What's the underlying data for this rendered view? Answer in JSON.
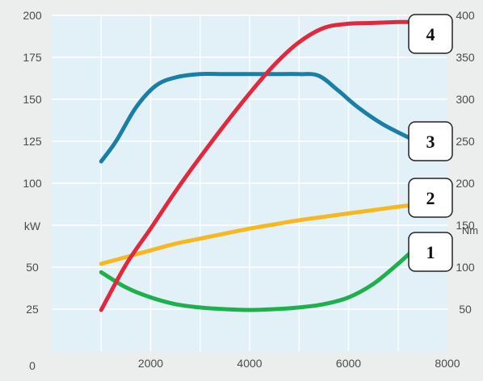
{
  "chart_data": {
    "type": "line",
    "x_ticks": [
      2000,
      4000,
      6000,
      8000
    ],
    "x_range": [
      0,
      8000
    ],
    "y_left": {
      "label": "kW",
      "ticks": [
        0,
        25,
        50,
        75,
        100,
        125,
        150,
        175,
        200
      ],
      "tick_labels": [
        "0",
        "25",
        "50",
        "",
        "100",
        "125",
        "150",
        "175",
        "200"
      ],
      "range": [
        0,
        200
      ]
    },
    "y_right": {
      "label": "Nm",
      "ticks": [
        50,
        100,
        150,
        200,
        250,
        300,
        350,
        400
      ],
      "range": [
        0,
        400
      ]
    },
    "grid": true,
    "plot_background": "#e2f0f8",
    "series": [
      {
        "label": "1",
        "axis": "left",
        "color": "#1fb04e",
        "x": [
          1000,
          1500,
          2000,
          2500,
          3000,
          3500,
          4000,
          4500,
          5000,
          5500,
          6000,
          6500,
          7000,
          7300
        ],
        "y": [
          47,
          38,
          32,
          28,
          26,
          25,
          24.5,
          25,
          26,
          28,
          32,
          40,
          52,
          60
        ]
      },
      {
        "label": "2",
        "axis": "left",
        "color": "#f5b820",
        "x": [
          1000,
          1500,
          2000,
          2500,
          3000,
          3500,
          4000,
          4500,
          5000,
          5500,
          6000,
          6500,
          7000,
          7300
        ],
        "y": [
          52,
          56,
          60,
          64,
          67,
          70,
          73,
          75.5,
          78,
          80,
          82,
          84,
          86,
          87
        ]
      },
      {
        "label": "3",
        "axis": "left",
        "color": "#1a7fa6",
        "x": [
          1000,
          1300,
          1700,
          2100,
          2500,
          3000,
          3500,
          4000,
          4500,
          5000,
          5400,
          5800,
          6200,
          6700,
          7300
        ],
        "y": [
          113,
          125,
          145,
          158,
          163,
          165,
          165,
          165,
          165,
          165,
          164,
          155,
          145,
          135,
          126
        ]
      },
      {
        "label": "4",
        "axis": "right",
        "color": "#e0293c",
        "x": [
          1000,
          1500,
          2000,
          2500,
          3000,
          3500,
          4000,
          4500,
          5000,
          5500,
          6000,
          6500,
          7000,
          7300
        ],
        "y": [
          49,
          103,
          146,
          190,
          231,
          270,
          307,
          341,
          368,
          385,
          390,
          391,
          392,
          392
        ]
      }
    ]
  }
}
